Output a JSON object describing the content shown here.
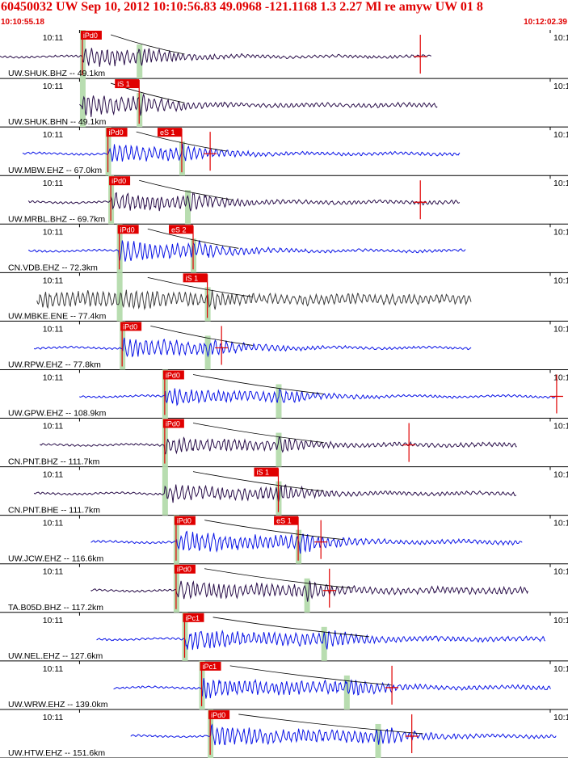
{
  "header": {
    "title": "60450032 UW Sep 10, 2012 10:10:56.83   49.0968 -121.1168  1.3 2.27 Ml re amyw UW 01   8",
    "time_start": "10:10:55.18",
    "time_end": "10:12:02.39"
  },
  "colors": {
    "header_text": "#e00000",
    "pick_fill": "#e00000",
    "pick_window": "#b8ddb0",
    "trace_bhz": "#2a0f4a",
    "trace_ehz": "#0a14e6",
    "trace_ene": "#3c3c3c",
    "theoretical_curve": "#000000",
    "separator": "#000000"
  },
  "chart_data": {
    "type": "line",
    "title": "60450032 UW Sep 10, 2012 10:10:56.83   49.0968 -121.1168  1.3 2.27 Ml re amyw UW 01   8",
    "x_range": [
      "10:10:55.18",
      "10:12:02.39"
    ],
    "tick_label_left": "10:11",
    "tick_label_right": "10:1",
    "grid": false,
    "legend": "none",
    "traces": [
      {
        "label": "UW.SHUK.BHZ -- 49.1km",
        "color_key": "trace_bhz",
        "start": 0.0,
        "end": 0.76,
        "p": 0.145,
        "s": 0.245,
        "p_label": "iPd0",
        "s_label": "",
        "amp": 0.55,
        "coda": 0.12,
        "spike": 0.74
      },
      {
        "label": "UW.SHUK.BHN -- 49.1km",
        "color_key": "trace_bhz",
        "start": 0.14,
        "end": 0.77,
        "p": 0.145,
        "s": 0.245,
        "p_label": "",
        "s_label": "iS 1",
        "amp": 0.6,
        "coda": 0.18,
        "spike": null
      },
      {
        "label": "UW.MBW.EHZ -- 67.0km",
        "color_key": "trace_ehz",
        "start": 0.04,
        "end": 0.81,
        "p": 0.19,
        "s": 0.32,
        "p_label": "iPd0",
        "s_label": "eS 1",
        "amp": 0.5,
        "coda": 0.14,
        "spike": 0.37
      },
      {
        "label": "UW.MRBL.BHZ -- 69.7km",
        "color_key": "trace_bhz",
        "start": 0.05,
        "end": 0.81,
        "p": 0.195,
        "s": 0.33,
        "p_label": "iPd0",
        "s_label": "",
        "amp": 0.55,
        "coda": 0.16,
        "spike": 0.74
      },
      {
        "label": "CN.VDB.EHZ -- 72.3km",
        "color_key": "trace_ehz",
        "start": 0.05,
        "end": 0.82,
        "p": 0.21,
        "s": 0.34,
        "p_label": "iPd0",
        "s_label": "eS 2",
        "amp": 0.55,
        "coda": 0.12,
        "spike": null
      },
      {
        "label": "UW.MBKE.ENE -- 77.4km",
        "color_key": "trace_ene",
        "start": 0.065,
        "end": 0.83,
        "p": 0.21,
        "s": 0.365,
        "p_label": "",
        "s_label": "iS 1",
        "amp": 0.55,
        "coda": 0.45,
        "spike": null
      },
      {
        "label": "UW.RPW.EHZ -- 77.8km",
        "color_key": "trace_ehz",
        "start": 0.06,
        "end": 0.83,
        "p": 0.215,
        "s": 0.365,
        "p_label": "iPd0",
        "s_label": "",
        "amp": 0.55,
        "coda": 0.1,
        "spike": 0.39
      },
      {
        "label": "UW.GPW.EHZ -- 108.9km",
        "color_key": "trace_ehz",
        "start": 0.14,
        "end": 0.98,
        "p": 0.29,
        "s": 0.49,
        "p_label": "iPd0",
        "s_label": "",
        "amp": 0.45,
        "coda": 0.1,
        "spike": 0.98
      },
      {
        "label": "CN.PNT.BHZ -- 111.7km",
        "color_key": "trace_bhz",
        "start": 0.07,
        "end": 0.91,
        "p": 0.29,
        "s": 0.49,
        "p_label": "iPd0",
        "s_label": "",
        "amp": 0.45,
        "coda": 0.18,
        "spike": 0.72
      },
      {
        "label": "CN.PNT.BHE -- 111.7km",
        "color_key": "trace_bhz",
        "start": 0.06,
        "end": 0.91,
        "p": 0.29,
        "s": 0.49,
        "p_label": "",
        "s_label": "iS 1",
        "amp": 0.5,
        "coda": 0.16,
        "spike": null
      },
      {
        "label": "UW.JCW.EHZ -- 116.6km",
        "color_key": "trace_ehz",
        "start": 0.16,
        "end": 0.92,
        "p": 0.31,
        "s": 0.525,
        "p_label": "iPd0",
        "s_label": "eS 1",
        "amp": 0.6,
        "coda": 0.18,
        "spike": 0.565
      },
      {
        "label": "TA.B05D.BHZ -- 117.2km",
        "color_key": "trace_bhz",
        "start": 0.16,
        "end": 0.93,
        "p": 0.31,
        "s": 0.54,
        "p_label": "iPd0",
        "s_label": "",
        "amp": 0.55,
        "coda": 0.3,
        "spike": 0.58
      },
      {
        "label": "UW.NEL.EHZ -- 127.6km",
        "color_key": "trace_ehz",
        "start": 0.17,
        "end": 0.96,
        "p": 0.325,
        "s": 0.57,
        "p_label": "iPc1",
        "s_label": "",
        "amp": 0.55,
        "coda": 0.2,
        "spike": null
      },
      {
        "label": "UW.WRW.EHZ -- 139.0km",
        "color_key": "trace_ehz",
        "start": 0.2,
        "end": 0.97,
        "p": 0.355,
        "s": 0.61,
        "p_label": "iPc1",
        "s_label": "",
        "amp": 0.55,
        "coda": 0.18,
        "spike": 0.69
      },
      {
        "label": "UW.HTW.EHZ -- 151.6km",
        "color_key": "trace_ehz",
        "start": 0.23,
        "end": 0.98,
        "p": 0.37,
        "s": 0.665,
        "p_label": "iPd0",
        "s_label": "",
        "amp": 0.55,
        "coda": 0.15,
        "spike": 0.725
      }
    ]
  }
}
